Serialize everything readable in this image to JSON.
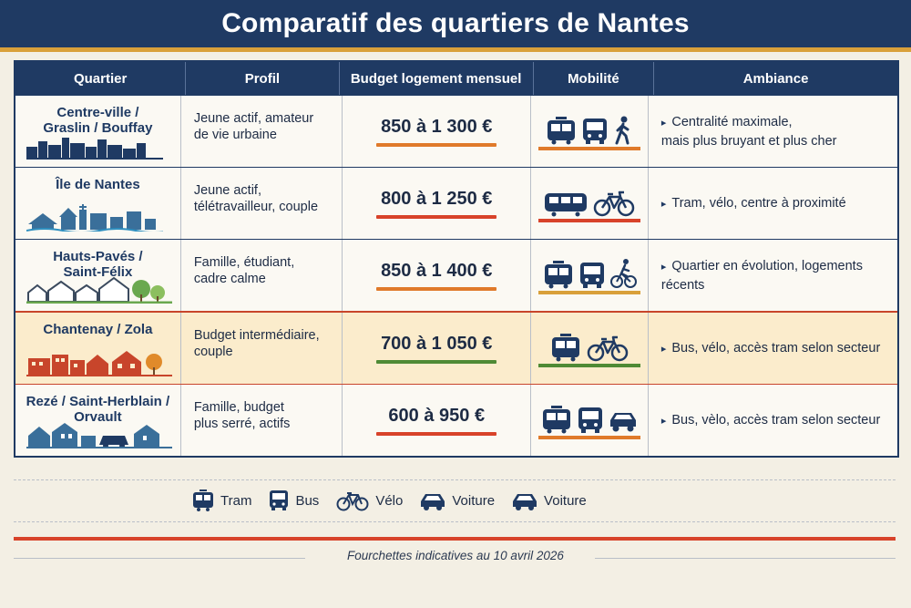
{
  "title": "Comparatif des quartiers de Nantes",
  "headers": [
    "Quartier",
    "Profil",
    "Budget logement mensuel",
    "Mobilité",
    "Ambiance"
  ],
  "rows": [
    {
      "quartier_l1": "Centre-ville /",
      "quartier_l2": "Graslin / Bouffay",
      "profil_l1": "Jeune actif, amateur",
      "profil_l2": "de vie urbaine",
      "budget": "850 à 1 300 €",
      "budget_color": "#e07a2a",
      "mobilite_icons": [
        "tram-icon",
        "bus-icon",
        "pedestrian-icon"
      ],
      "ambiance_l1": "Centralité maximale,",
      "ambiance_l2": "mais plus bruyant et plus cher"
    },
    {
      "quartier_l1": "Île de Nantes",
      "quartier_l2": "",
      "profil_l1": "Jeune actif,",
      "profil_l2": "télétravailleur, couple",
      "budget": "800 à 1 250 €",
      "budget_color": "#d8432a",
      "mobilite_icons": [
        "tram-icon",
        "bike-icon"
      ],
      "ambiance_l1": "Tram, vélo, centre à proximité",
      "ambiance_l2": ""
    },
    {
      "quartier_l1": "Hauts-Pavés /",
      "quartier_l2": "Saint-Félix",
      "profil_l1": "Famille, étudiant,",
      "profil_l2": "cadre calme",
      "budget": "850 à 1 400 €",
      "budget_color": "#e07a2a",
      "mobilite_icons": [
        "tram-icon",
        "bus-icon",
        "cyclist-icon"
      ],
      "ambiance_l1": "Quartier en évolution, logements récents",
      "ambiance_l2": ""
    },
    {
      "quartier_l1": "Chantenay / Zola",
      "quartier_l2": "",
      "profil_l1": "Budget intermédiaire,",
      "profil_l2": "couple",
      "budget": "700 à 1 050 €",
      "budget_color": "#4f8a35",
      "mobilite_icons": [
        "tram-icon",
        "bike-icon"
      ],
      "ambiance_l1": "Bus, vélo, accès tram selon secteur",
      "ambiance_l2": ""
    },
    {
      "quartier_l1": "Rezé / Saint-Herblain /",
      "quartier_l2": "Orvault",
      "profil_l1": "Famille, budget",
      "profil_l2": "plus serré, actifs",
      "budget": "600 à 950 €",
      "budget_color": "#d8432a",
      "mobilite_icons": [
        "tram-icon",
        "bus-icon",
        "car-icon"
      ],
      "ambiance_l1": "Bus, vèlo, accès tram selon secteur",
      "ambiance_l2": ""
    }
  ],
  "legend": {
    "tram": "Tram",
    "bus": "Bus",
    "velo": "Vélo",
    "voiture1": "Voiture",
    "voiture2": "Voiture"
  },
  "footer": "Fourchettes indicatives au 10 avril 2026",
  "colors": {
    "navy": "#1f3a63",
    "gold": "#d9a03a",
    "red": "#d8432a",
    "orange": "#e07a2a",
    "green": "#4f8a35",
    "highlight_bg": "#fbeccc"
  }
}
